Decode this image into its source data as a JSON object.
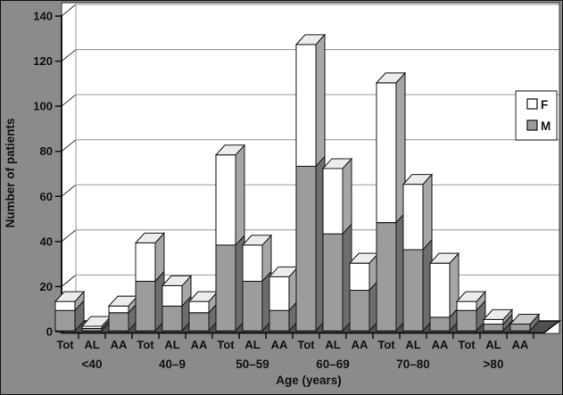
{
  "figure": {
    "background_color": "#8b8b8b",
    "plot_background": "#ffffff",
    "floor_color": "#4f4f4f",
    "gridline_color": "#999999"
  },
  "chart_data": {
    "type": "bar",
    "stacked": true,
    "effect": "3d",
    "title": "",
    "xlabel": "Age (years)",
    "ylabel": "Number of patients",
    "ylim": [
      0,
      140
    ],
    "ytick_step": 20,
    "yticks": [
      0,
      20,
      40,
      60,
      80,
      100,
      120,
      140
    ],
    "grid": true,
    "groups": [
      "<40",
      "40–9",
      "50–59",
      "60–69",
      "70–80",
      ">80"
    ],
    "bar_labels": [
      "Tot",
      "AL",
      "AA"
    ],
    "legend": {
      "position": "right",
      "entries": [
        {
          "label": "F",
          "color": "#ffffff"
        },
        {
          "label": "M",
          "color": "#9c9c9c"
        }
      ]
    },
    "series": [
      {
        "name": "M",
        "color": "#9c9c9c",
        "values": [
          [
            9,
            1,
            8
          ],
          [
            22,
            11,
            8
          ],
          [
            38,
            22,
            9
          ],
          [
            73,
            43,
            18
          ],
          [
            48,
            36,
            6
          ],
          [
            9,
            3,
            3
          ]
        ]
      },
      {
        "name": "F",
        "color": "#ffffff",
        "values": [
          [
            4,
            1,
            3
          ],
          [
            17,
            9,
            5
          ],
          [
            40,
            16,
            15
          ],
          [
            54,
            29,
            12
          ],
          [
            62,
            29,
            24
          ],
          [
            4,
            2,
            0
          ]
        ]
      }
    ],
    "bar_totals": [
      [
        13,
        2,
        11
      ],
      [
        39,
        20,
        13
      ],
      [
        78,
        38,
        24
      ],
      [
        127,
        72,
        30
      ],
      [
        110,
        65,
        30
      ],
      [
        13,
        5,
        3
      ]
    ]
  }
}
